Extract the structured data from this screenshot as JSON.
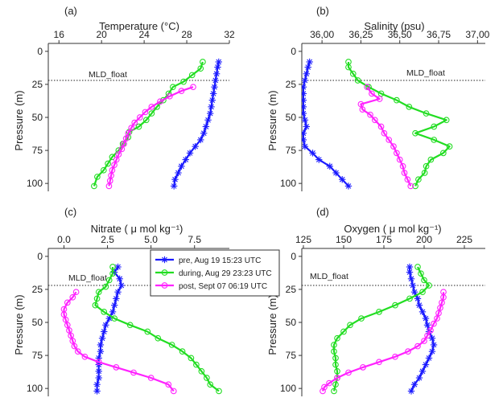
{
  "colors": {
    "pre": "#1a1aff",
    "during": "#22dd22",
    "post": "#ff22ff",
    "axis": "#333333"
  },
  "mld_depth_m": 22,
  "legend": {
    "entries": [
      {
        "key": "pre",
        "label": "pre, Aug 19 15:23 UTC",
        "marker": "star"
      },
      {
        "key": "during",
        "label": "during, Aug 29 23:23 UTC",
        "marker": "circle"
      },
      {
        "key": "post",
        "label": "post, Sept 07 06:19 UTC",
        "marker": "circle"
      }
    ]
  },
  "chart_data": [
    {
      "type": "line",
      "panel_label": "(a)",
      "title": "Temperature (°C)",
      "ylabel": "Pressure (m)",
      "mld_label": "MLD_float",
      "xlim": [
        15,
        32
      ],
      "xticks": [
        16,
        20,
        24,
        28,
        32
      ],
      "xtick_labels": [
        "16",
        "20",
        "24",
        "28",
        "32"
      ],
      "ylim": [
        0,
        100
      ],
      "yticks": [
        0,
        25,
        50,
        75,
        100
      ],
      "ytick_labels": [
        "0",
        "25",
        "50",
        "75",
        "100"
      ],
      "series": [
        {
          "key": "pre",
          "points": [
            [
              31.0,
              8
            ],
            [
              30.9,
              12
            ],
            [
              30.8,
              17
            ],
            [
              30.7,
              22
            ],
            [
              30.6,
              27
            ],
            [
              30.5,
              32
            ],
            [
              30.4,
              37
            ],
            [
              30.3,
              42
            ],
            [
              30.2,
              47
            ],
            [
              30.0,
              52
            ],
            [
              29.8,
              57
            ],
            [
              29.6,
              62
            ],
            [
              29.3,
              67
            ],
            [
              28.8,
              72
            ],
            [
              28.3,
              77
            ],
            [
              27.9,
              82
            ],
            [
              27.5,
              87
            ],
            [
              27.2,
              92
            ],
            [
              26.9,
              97
            ],
            [
              26.8,
              102
            ]
          ]
        },
        {
          "key": "during",
          "points": [
            [
              29.5,
              8
            ],
            [
              29.3,
              13
            ],
            [
              28.5,
              18
            ],
            [
              27.7,
              23
            ],
            [
              26.7,
              27
            ],
            [
              26.3,
              32
            ],
            [
              25.8,
              37
            ],
            [
              25.2,
              42
            ],
            [
              24.7,
              47
            ],
            [
              24.2,
              52
            ],
            [
              23.5,
              57
            ],
            [
              22.6,
              61
            ],
            [
              22.5,
              65
            ],
            [
              22.0,
              70
            ],
            [
              21.6,
              75
            ],
            [
              21.0,
              80
            ],
            [
              20.6,
              85
            ],
            [
              20.2,
              90
            ],
            [
              19.6,
              95
            ],
            [
              19.3,
              102
            ]
          ]
        },
        {
          "key": "post",
          "points": [
            [
              28.6,
              27
            ],
            [
              27.5,
              30
            ],
            [
              26.4,
              34
            ],
            [
              25.5,
              38
            ],
            [
              24.7,
              42
            ],
            [
              24.1,
              46
            ],
            [
              23.6,
              50
            ],
            [
              23.1,
              54
            ],
            [
              22.8,
              58
            ],
            [
              22.5,
              62
            ],
            [
              22.3,
              66
            ],
            [
              22.1,
              70
            ],
            [
              21.9,
              74
            ],
            [
              21.6,
              78
            ],
            [
              21.4,
              82
            ],
            [
              21.2,
              86
            ],
            [
              21.0,
              90
            ],
            [
              20.9,
              94
            ],
            [
              20.8,
              98
            ],
            [
              20.7,
              102
            ]
          ]
        }
      ]
    },
    {
      "type": "line",
      "panel_label": "(b)",
      "title": "Salinity (psu)",
      "ylabel": "Pressure (m)",
      "mld_label": "MLD_float",
      "xlim": [
        35.87,
        37.05
      ],
      "xticks": [
        36.0,
        36.25,
        36.5,
        36.75,
        37.0
      ],
      "xtick_labels": [
        "36,00",
        "36,25",
        "36,50",
        "36,75",
        "37,00"
      ],
      "ylim": [
        0,
        100
      ],
      "yticks": [
        0,
        25,
        50,
        75,
        100
      ],
      "ytick_labels": [
        "0",
        "25",
        "50",
        "75",
        "100"
      ],
      "series": [
        {
          "key": "pre",
          "points": [
            [
              35.92,
              8
            ],
            [
              35.91,
              12
            ],
            [
              35.9,
              17
            ],
            [
              35.89,
              22
            ],
            [
              35.88,
              27
            ],
            [
              35.88,
              32
            ],
            [
              35.88,
              37
            ],
            [
              35.88,
              42
            ],
            [
              35.88,
              47
            ],
            [
              35.89,
              52
            ],
            [
              35.9,
              57
            ],
            [
              35.88,
              62
            ],
            [
              35.88,
              67
            ],
            [
              35.89,
              72
            ],
            [
              35.94,
              77
            ],
            [
              35.98,
              82
            ],
            [
              36.05,
              87
            ],
            [
              36.09,
              92
            ],
            [
              36.13,
              97
            ],
            [
              36.17,
              102
            ]
          ]
        },
        {
          "key": "during",
          "points": [
            [
              36.17,
              8
            ],
            [
              36.17,
              12
            ],
            [
              36.2,
              17
            ],
            [
              36.23,
              22
            ],
            [
              36.3,
              27
            ],
            [
              36.38,
              32
            ],
            [
              36.48,
              37
            ],
            [
              36.56,
              42
            ],
            [
              36.67,
              47
            ],
            [
              36.8,
              52
            ],
            [
              36.72,
              57
            ],
            [
              36.6,
              62
            ],
            [
              36.72,
              67
            ],
            [
              36.82,
              72
            ],
            [
              36.78,
              77
            ],
            [
              36.7,
              82
            ],
            [
              36.67,
              87
            ],
            [
              36.66,
              92
            ],
            [
              36.62,
              97
            ],
            [
              36.6,
              102
            ]
          ]
        },
        {
          "key": "post",
          "points": [
            [
              36.29,
              27
            ],
            [
              36.32,
              32
            ],
            [
              36.37,
              36
            ],
            [
              36.25,
              40
            ],
            [
              36.26,
              44
            ],
            [
              36.31,
              48
            ],
            [
              36.34,
              52
            ],
            [
              36.38,
              57
            ],
            [
              36.4,
              62
            ],
            [
              36.43,
              67
            ],
            [
              36.46,
              72
            ],
            [
              36.48,
              77
            ],
            [
              36.5,
              82
            ],
            [
              36.52,
              87
            ],
            [
              36.53,
              92
            ],
            [
              36.55,
              97
            ],
            [
              36.57,
              102
            ]
          ]
        }
      ]
    },
    {
      "type": "line",
      "panel_label": "(c)",
      "title": "Nitrate  ( μ mol kg⁻¹)",
      "ylabel": "Pressure (m)",
      "mld_label": "MLD_float",
      "xlim": [
        -0.9,
        9.5
      ],
      "xticks": [
        0,
        2.5,
        5.0,
        7.5
      ],
      "xtick_labels": [
        "0.0",
        "2.5",
        "5.0",
        "7.5"
      ],
      "ylim": [
        0,
        100
      ],
      "yticks": [
        0,
        25,
        50,
        75,
        100
      ],
      "ytick_labels": [
        "0",
        "25",
        "50",
        "75",
        "100"
      ],
      "series": [
        {
          "key": "pre",
          "points": [
            [
              3.1,
              8
            ],
            [
              2.9,
              12
            ],
            [
              3.2,
              17
            ],
            [
              3.3,
              22
            ],
            [
              3.1,
              27
            ],
            [
              3.0,
              32
            ],
            [
              2.9,
              37
            ],
            [
              2.8,
              42
            ],
            [
              2.6,
              47
            ],
            [
              2.4,
              52
            ],
            [
              2.3,
              57
            ],
            [
              2.2,
              62
            ],
            [
              2.1,
              67
            ],
            [
              2.1,
              72
            ],
            [
              2.0,
              77
            ],
            [
              2.0,
              82
            ],
            [
              2.0,
              87
            ],
            [
              2.0,
              92
            ],
            [
              1.9,
              97
            ],
            [
              1.9,
              102
            ]
          ]
        },
        {
          "key": "during",
          "points": [
            [
              2.8,
              8
            ],
            [
              2.8,
              13
            ],
            [
              2.6,
              18
            ],
            [
              2.4,
              23
            ],
            [
              2.0,
              27
            ],
            [
              1.9,
              32
            ],
            [
              1.8,
              37
            ],
            [
              2.3,
              42
            ],
            [
              2.9,
              47
            ],
            [
              3.8,
              52
            ],
            [
              4.8,
              57
            ],
            [
              5.4,
              62
            ],
            [
              6.2,
              67
            ],
            [
              6.8,
              72
            ],
            [
              7.3,
              77
            ],
            [
              7.6,
              82
            ],
            [
              7.9,
              87
            ],
            [
              8.2,
              92
            ],
            [
              8.4,
              97
            ],
            [
              8.9,
              102
            ]
          ]
        },
        {
          "key": "post",
          "points": [
            [
              0.7,
              27
            ],
            [
              0.5,
              31
            ],
            [
              0.2,
              35
            ],
            [
              0.0,
              40
            ],
            [
              0.0,
              44
            ],
            [
              0.1,
              48
            ],
            [
              0.2,
              52
            ],
            [
              0.3,
              56
            ],
            [
              0.4,
              60
            ],
            [
              0.5,
              64
            ],
            [
              0.6,
              68
            ],
            [
              0.8,
              72
            ],
            [
              1.2,
              76
            ],
            [
              2.0,
              80
            ],
            [
              3.0,
              84
            ],
            [
              4.0,
              88
            ],
            [
              5.0,
              92
            ],
            [
              6.0,
              97
            ],
            [
              6.3,
              102
            ]
          ]
        }
      ]
    },
    {
      "type": "line",
      "panel_label": "(d)",
      "title": "Oxygen  ( μ mol kg⁻¹)",
      "ylabel": "Pressure (m)",
      "mld_label": "MLD_float",
      "xlim": [
        124,
        238
      ],
      "xticks": [
        125,
        150,
        175,
        200,
        225
      ],
      "xtick_labels": [
        "125",
        "150",
        "175",
        "200",
        "225"
      ],
      "ylim": [
        0,
        100
      ],
      "yticks": [
        0,
        25,
        50,
        75,
        100
      ],
      "ytick_labels": [
        "0",
        "25",
        "50",
        "75",
        "100"
      ],
      "series": [
        {
          "key": "pre",
          "points": [
            [
              191,
              8
            ],
            [
              191,
              12
            ],
            [
              192,
              17
            ],
            [
              193,
              22
            ],
            [
              194,
              27
            ],
            [
              196,
              32
            ],
            [
              197,
              37
            ],
            [
              199,
              42
            ],
            [
              201,
              47
            ],
            [
              202,
              52
            ],
            [
              203,
              57
            ],
            [
              205,
              62
            ],
            [
              206,
              67
            ],
            [
              205,
              72
            ],
            [
              203,
              77
            ],
            [
              201,
              82
            ],
            [
              199,
              87
            ],
            [
              197,
              92
            ],
            [
              194,
              97
            ],
            [
              192,
              102
            ]
          ]
        },
        {
          "key": "during",
          "points": [
            [
              196,
              8
            ],
            [
              198,
              13
            ],
            [
              200,
              18
            ],
            [
              203,
              22
            ],
            [
              199,
              27
            ],
            [
              191,
              32
            ],
            [
              182,
              37
            ],
            [
              172,
              42
            ],
            [
              161,
              47
            ],
            [
              154,
              52
            ],
            [
              150,
              57
            ],
            [
              146,
              62
            ],
            [
              144,
              67
            ],
            [
              144,
              72
            ],
            [
              145,
              77
            ],
            [
              145,
              82
            ],
            [
              146,
              87
            ],
            [
              146,
              92
            ],
            [
              145,
              97
            ],
            [
              144,
              102
            ]
          ]
        },
        {
          "key": "post",
          "points": [
            [
              212,
              27
            ],
            [
              212,
              31
            ],
            [
              211,
              35
            ],
            [
              210,
              39
            ],
            [
              209,
              43
            ],
            [
              208,
              47
            ],
            [
              206,
              51
            ],
            [
              204,
              56
            ],
            [
              202,
              60
            ],
            [
              200,
              64
            ],
            [
              196,
              68
            ],
            [
              190,
              72
            ],
            [
              182,
              76
            ],
            [
              172,
              80
            ],
            [
              162,
              84
            ],
            [
              153,
              88
            ],
            [
              146,
              92
            ],
            [
              141,
              96
            ],
            [
              138,
              99
            ],
            [
              137,
              102
            ]
          ]
        }
      ]
    }
  ]
}
